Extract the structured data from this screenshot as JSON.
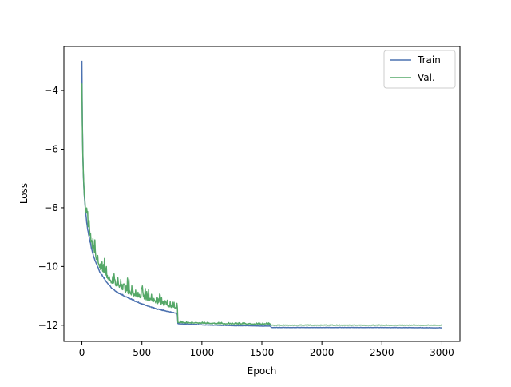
{
  "chart_data": {
    "type": "line",
    "title": "",
    "xlabel": "Epoch",
    "ylabel": "Loss",
    "xlim": [
      -150,
      3150
    ],
    "ylim": [
      -12.55,
      -2.5
    ],
    "xticks": [
      0,
      500,
      1000,
      1500,
      2000,
      2500,
      3000
    ],
    "xtick_labels": [
      "0",
      "500",
      "1000",
      "1500",
      "2000",
      "2500",
      "3000"
    ],
    "yticks": [
      -12,
      -10,
      -8,
      -6,
      -4
    ],
    "ytick_labels": [
      "−12",
      "−10",
      "−8",
      "−6",
      "−4"
    ],
    "grid": false,
    "legend_position": "top-right",
    "series": [
      {
        "name": "Train",
        "color": "#4c72b0",
        "points": [
          [
            0,
            -3.0
          ],
          [
            2,
            -4.3
          ],
          [
            5,
            -5.5
          ],
          [
            10,
            -6.6
          ],
          [
            15,
            -7.2
          ],
          [
            20,
            -7.6
          ],
          [
            30,
            -8.1
          ],
          [
            40,
            -8.5
          ],
          [
            50,
            -8.8
          ],
          [
            60,
            -9.0
          ],
          [
            80,
            -9.4
          ],
          [
            100,
            -9.7
          ],
          [
            150,
            -10.2
          ],
          [
            200,
            -10.5
          ],
          [
            250,
            -10.75
          ],
          [
            300,
            -10.9
          ],
          [
            350,
            -11.0
          ],
          [
            400,
            -11.1
          ],
          [
            450,
            -11.2
          ],
          [
            500,
            -11.28
          ],
          [
            550,
            -11.35
          ],
          [
            600,
            -11.42
          ],
          [
            650,
            -11.48
          ],
          [
            700,
            -11.52
          ],
          [
            750,
            -11.56
          ],
          [
            795,
            -11.6
          ],
          [
            800,
            -11.95
          ],
          [
            900,
            -11.97
          ],
          [
            1000,
            -11.99
          ],
          [
            1100,
            -12.0
          ],
          [
            1200,
            -12.01
          ],
          [
            1300,
            -12.02
          ],
          [
            1400,
            -12.02
          ],
          [
            1500,
            -12.03
          ],
          [
            1570,
            -12.03
          ],
          [
            1580,
            -12.08
          ],
          [
            2000,
            -12.08
          ],
          [
            2500,
            -12.08
          ],
          [
            3000,
            -12.09
          ]
        ],
        "noise": [
          [
            0,
            0.05
          ],
          [
            300,
            0.04
          ],
          [
            800,
            0.02
          ],
          [
            1580,
            0.01
          ],
          [
            3000,
            0.01
          ]
        ]
      },
      {
        "name": "Val.",
        "color": "#55a868",
        "points": [
          [
            0,
            -4.1
          ],
          [
            2,
            -4.8
          ],
          [
            5,
            -5.6
          ],
          [
            10,
            -6.6
          ],
          [
            15,
            -7.1
          ],
          [
            20,
            -7.5
          ],
          [
            30,
            -8.0
          ],
          [
            40,
            -8.4
          ],
          [
            50,
            -8.6
          ],
          [
            60,
            -8.8
          ],
          [
            80,
            -9.2
          ],
          [
            100,
            -9.5
          ],
          [
            150,
            -10.0
          ],
          [
            200,
            -10.3
          ],
          [
            250,
            -10.5
          ],
          [
            300,
            -10.65
          ],
          [
            350,
            -10.78
          ],
          [
            400,
            -10.88
          ],
          [
            450,
            -10.98
          ],
          [
            500,
            -11.05
          ],
          [
            550,
            -11.12
          ],
          [
            600,
            -11.18
          ],
          [
            650,
            -11.24
          ],
          [
            700,
            -11.3
          ],
          [
            750,
            -11.35
          ],
          [
            795,
            -11.4
          ],
          [
            800,
            -11.9
          ],
          [
            900,
            -11.92
          ],
          [
            1000,
            -11.93
          ],
          [
            1100,
            -11.94
          ],
          [
            1200,
            -11.95
          ],
          [
            1300,
            -11.95
          ],
          [
            1400,
            -11.96
          ],
          [
            1500,
            -11.96
          ],
          [
            1570,
            -11.96
          ],
          [
            1580,
            -12.0
          ],
          [
            2000,
            -12.0
          ],
          [
            2500,
            -12.0
          ],
          [
            3000,
            -12.0
          ]
        ],
        "noise": [
          [
            0,
            0.5
          ],
          [
            100,
            0.55
          ],
          [
            300,
            0.55
          ],
          [
            500,
            0.45
          ],
          [
            700,
            0.35
          ],
          [
            795,
            0.35
          ],
          [
            800,
            0.05
          ],
          [
            1570,
            0.05
          ],
          [
            1580,
            0.015
          ],
          [
            3000,
            0.015
          ]
        ]
      }
    ]
  }
}
